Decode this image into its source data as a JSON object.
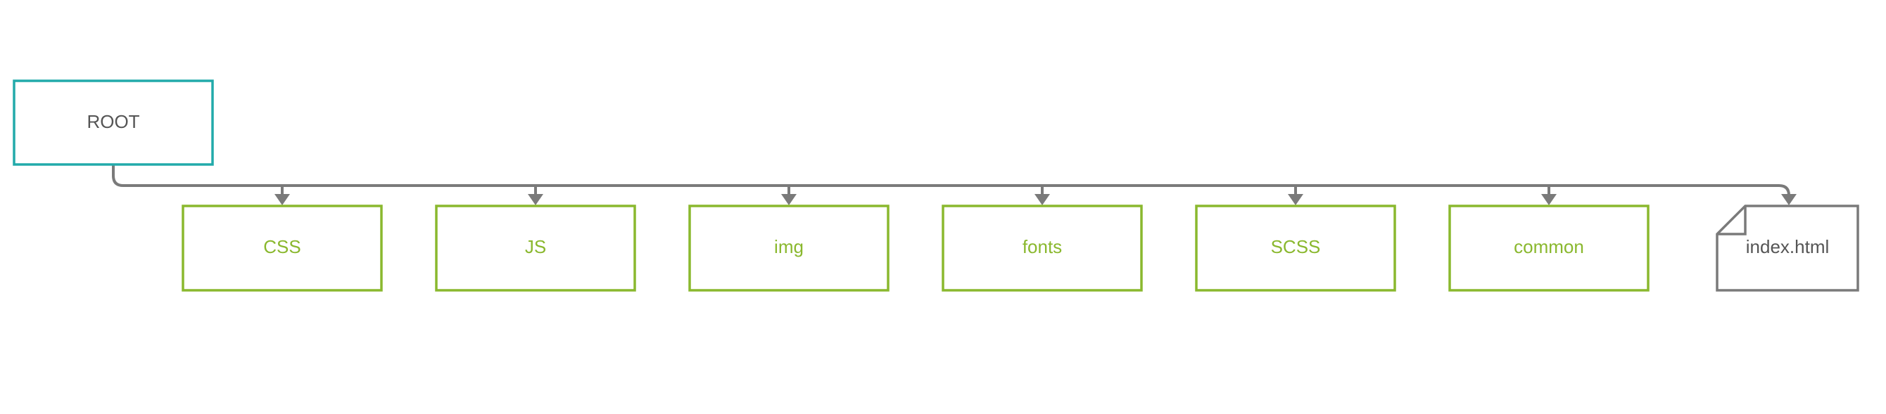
{
  "colors": {
    "root": "#22aaaa",
    "folder": "#8ab82e",
    "file": "#7a7a7a",
    "connector": "#7a7a7a",
    "root_text": "#555555",
    "file_text": "#555555"
  },
  "root": {
    "label": "ROOT"
  },
  "children": [
    {
      "label": "CSS",
      "kind": "folder"
    },
    {
      "label": "JS",
      "kind": "folder"
    },
    {
      "label": "img",
      "kind": "folder"
    },
    {
      "label": "fonts",
      "kind": "folder"
    },
    {
      "label": "SCSS",
      "kind": "folder"
    },
    {
      "label": "common",
      "kind": "folder"
    },
    {
      "label": "index.html",
      "kind": "file",
      "icon": "document-icon"
    }
  ]
}
